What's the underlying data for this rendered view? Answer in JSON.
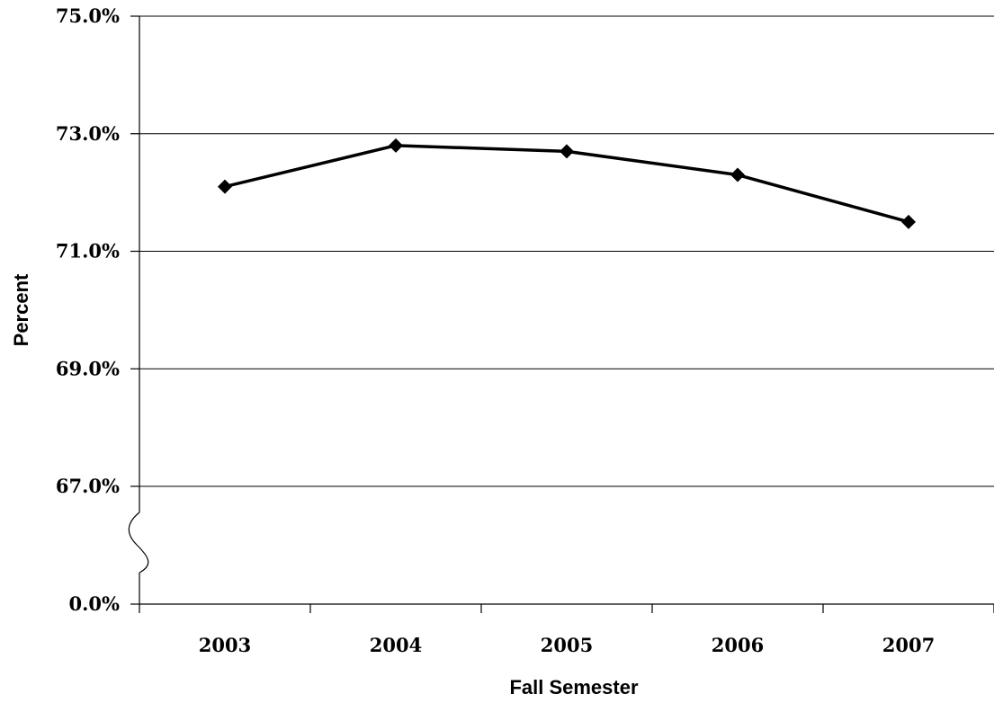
{
  "chart_data": {
    "type": "line",
    "title": "",
    "xlabel": "Fall Semester",
    "ylabel": "Percent",
    "categories": [
      "2003",
      "2004",
      "2005",
      "2006",
      "2007"
    ],
    "series": [
      {
        "values": [
          72.1,
          72.8,
          72.7,
          72.3,
          71.5
        ]
      }
    ],
    "y_ticks": [
      {
        "label": "75.0%",
        "value": 75.0
      },
      {
        "label": "73.0%",
        "value": 73.0
      },
      {
        "label": "71.0%",
        "value": 71.0
      },
      {
        "label": "69.0%",
        "value": 69.0
      },
      {
        "label": "67.0%",
        "value": 67.0
      },
      {
        "label": "0.0%",
        "value": 0.0
      }
    ],
    "ylim": [
      67.0,
      75.0
    ],
    "y_axis_break": "between 0.0% and 67.0%",
    "grid": true,
    "legend": "none",
    "marker": "diamond",
    "colors": {
      "line": "#000000",
      "grid": "#000000",
      "background": "#ffffff"
    }
  }
}
